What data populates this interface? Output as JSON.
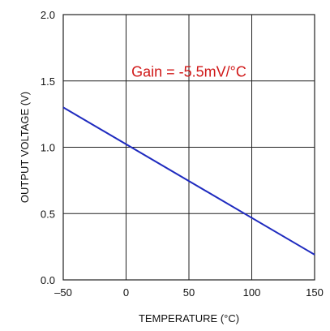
{
  "chart_data": {
    "type": "line",
    "title": "",
    "xlabel": "TEMPERATURE (°C)",
    "ylabel": "OUTPUT VOLTAGE (V)",
    "xlim": [
      -50,
      150
    ],
    "ylim": [
      0,
      2
    ],
    "xticks": [
      -50,
      0,
      50,
      100,
      150
    ],
    "yticks": [
      0,
      0.5,
      1,
      1.5,
      2
    ],
    "xtick_labels": [
      "–50",
      "0",
      "50",
      "100",
      "150"
    ],
    "ytick_labels": [
      "0.0",
      "0.5",
      "1.0",
      "1.5",
      "2.0"
    ],
    "grid": true,
    "series": [
      {
        "x": [
          -50,
          150
        ],
        "y": [
          1.3,
          0.19
        ]
      }
    ],
    "annotation": {
      "text": "Gain = -5.5mV/°C",
      "x": 50,
      "y": 1.57
    },
    "colors": {
      "line": "#1f2bbf",
      "annotation": "#d01818",
      "grid": "#222222"
    }
  }
}
